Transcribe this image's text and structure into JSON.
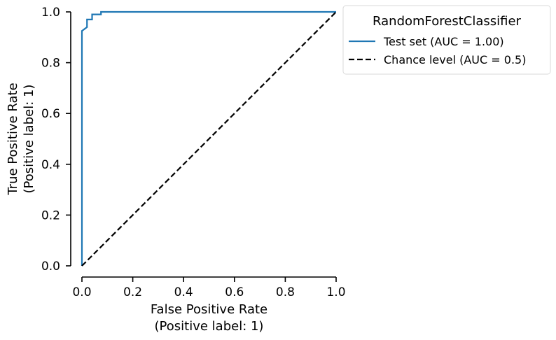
{
  "chart_data": {
    "type": "line",
    "xlabel_line1": "False Positive Rate",
    "xlabel_line2": "(Positive label: 1)",
    "ylabel_line1": "True Positive Rate",
    "ylabel_line2": "(Positive label: 1)",
    "xlim": [
      0,
      1
    ],
    "ylim": [
      0,
      1
    ],
    "x_ticks": [
      0.0,
      0.2,
      0.4,
      0.6,
      0.8,
      1.0
    ],
    "y_ticks": [
      0.0,
      0.2,
      0.4,
      0.6,
      0.8,
      1.0
    ],
    "x_tick_labels": [
      "0.0",
      "0.2",
      "0.4",
      "0.6",
      "0.8",
      "1.0"
    ],
    "y_tick_labels": [
      "0.0",
      "0.2",
      "0.4",
      "0.6",
      "0.8",
      "1.0"
    ],
    "grid": false,
    "legend": {
      "title": "RandomForestClassifier",
      "placement": "outside-top-right"
    },
    "series": [
      {
        "name": "Test set (AUC = 1.00)",
        "color": "#1f77b4",
        "style": "solid",
        "x": [
          0.0,
          0.0,
          0.0,
          0.02,
          0.02,
          0.04,
          0.04,
          0.075,
          0.075,
          1.0
        ],
        "y": [
          0.0,
          0.925,
          0.925,
          0.94,
          0.97,
          0.97,
          0.99,
          0.99,
          1.0,
          1.0
        ]
      },
      {
        "name": "Chance level (AUC = 0.5)",
        "color": "#000000",
        "style": "dashed",
        "x": [
          0.0,
          1.0
        ],
        "y": [
          0.0,
          1.0
        ]
      }
    ]
  }
}
